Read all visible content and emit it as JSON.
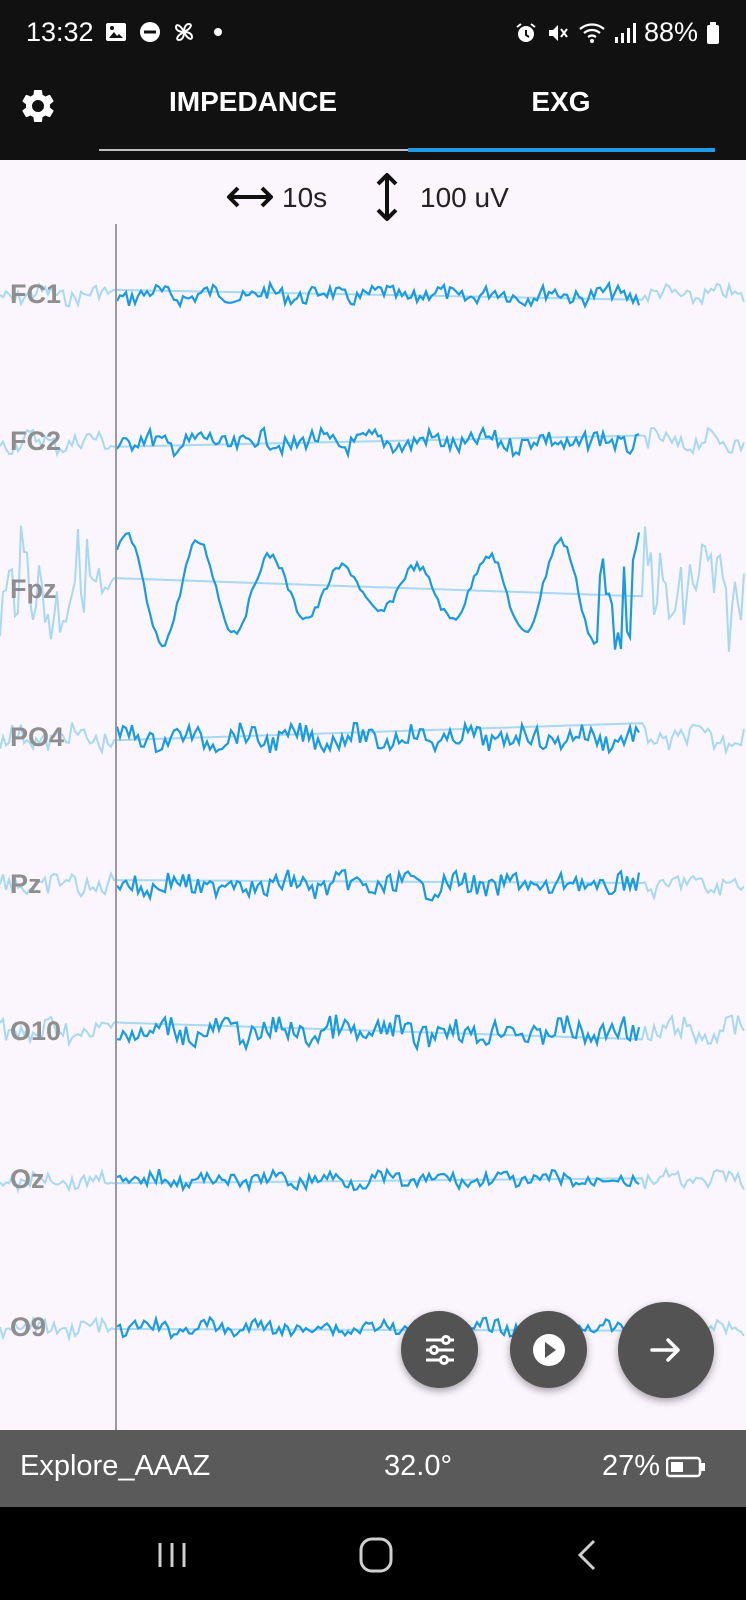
{
  "status_bar": {
    "time": "13:32",
    "battery": "88%",
    "icons_left": [
      "gallery-icon",
      "do-not-disturb-icon",
      "fan-icon",
      "dot-icon"
    ],
    "icons_right": [
      "alarm-icon",
      "mute-icon",
      "wifi-icon",
      "signal-icon",
      "battery-icon"
    ]
  },
  "header": {
    "tabs": [
      {
        "label": "IMPEDANCE",
        "active": false
      },
      {
        "label": "EXG",
        "active": true
      }
    ],
    "settings_icon": "gear-icon",
    "accent_color": "#1e9be6"
  },
  "scale": {
    "time_window": "10s",
    "amplitude": "100 uV"
  },
  "channels": [
    {
      "name": "FC1"
    },
    {
      "name": "FC2"
    },
    {
      "name": "Fpz"
    },
    {
      "name": "PO4"
    },
    {
      "name": "Pz"
    },
    {
      "name": "O10"
    },
    {
      "name": "Oz"
    },
    {
      "name": "O9"
    }
  ],
  "trace_colors": {
    "current": "#1a9be0",
    "previous": "#a8d8f2"
  },
  "actions": {
    "filter": "sliders-icon",
    "play": "play-icon",
    "next": "arrow-right-icon"
  },
  "device": {
    "name": "Explore_AAAZ",
    "temperature": "32.0°",
    "battery": "27%"
  },
  "nav": [
    "recents-icon",
    "home-icon",
    "back-icon"
  ]
}
